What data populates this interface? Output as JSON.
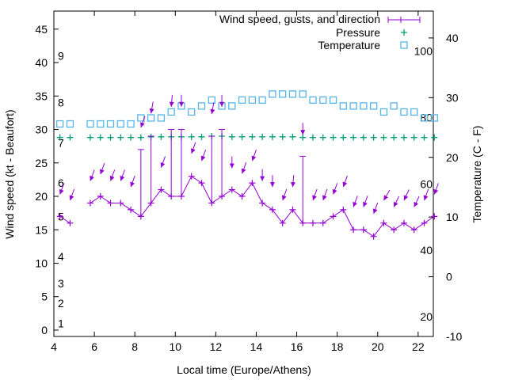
{
  "chart_data": {
    "type": "line",
    "xlabel": "Local time (Europe/Athens)",
    "ylabel": "Wind speed (kt - Beaufort)",
    "y2label": "Temperature (C - F)",
    "xlim": [
      4,
      22.75
    ],
    "ylim": [
      -0.95,
      47.7
    ],
    "y2lim": [
      -10,
      44.5
    ],
    "xticks": [
      4,
      6,
      8,
      10,
      12,
      14,
      16,
      18,
      20,
      22
    ],
    "yticks": [
      0,
      5,
      10,
      15,
      20,
      25,
      30,
      35,
      40,
      45
    ],
    "y2ticks": [
      -10,
      0,
      10,
      20,
      30,
      40
    ],
    "beaufort_labels": [
      {
        "label": "1",
        "kt": 1
      },
      {
        "label": "2",
        "kt": 4
      },
      {
        "label": "3",
        "kt": 7
      },
      {
        "label": "4",
        "kt": 11
      },
      {
        "label": "5",
        "kt": 17
      },
      {
        "label": "6",
        "kt": 22
      },
      {
        "label": "7",
        "kt": 28
      },
      {
        "label": "8",
        "kt": 34
      },
      {
        "label": "9",
        "kt": 41
      }
    ],
    "fahrenheit_labels": [
      {
        "label": "20",
        "f": 20
      },
      {
        "label": "40",
        "f": 40
      },
      {
        "label": "60",
        "f": 60
      },
      {
        "label": "80",
        "f": 80
      },
      {
        "label": "100",
        "f": 100
      }
    ],
    "legend": {
      "position": "top-right",
      "entries": [
        "Wind speed, gusts, and direction",
        "Pressure",
        "Temperature"
      ]
    },
    "colors": {
      "wind": "#9400d3",
      "pressure": "#009e73",
      "temperature": "#56b4e9"
    },
    "x": [
      4.3,
      4.8,
      5.8,
      6.3,
      6.8,
      7.3,
      7.8,
      8.3,
      8.8,
      9.3,
      9.8,
      10.3,
      10.8,
      11.3,
      11.8,
      12.3,
      12.8,
      13.3,
      13.8,
      14.3,
      14.8,
      15.3,
      15.8,
      16.3,
      16.8,
      17.3,
      17.8,
      18.3,
      18.8,
      19.3,
      19.8,
      20.3,
      20.8,
      21.3,
      21.8,
      22.3,
      22.8
    ],
    "series": [
      {
        "name": "Wind speed",
        "values": [
          17,
          16,
          19,
          20,
          19,
          19,
          18,
          17,
          19,
          21,
          20,
          20,
          23,
          22,
          19,
          20,
          21,
          20,
          22,
          19,
          18,
          16,
          18,
          16,
          16,
          16,
          17,
          18,
          15,
          15,
          14,
          16,
          15,
          16,
          15,
          16,
          17
        ]
      },
      {
        "name": "Gusts",
        "values": [
          null,
          null,
          null,
          null,
          null,
          null,
          null,
          27,
          29,
          null,
          30,
          30,
          null,
          null,
          29,
          30,
          null,
          null,
          null,
          null,
          null,
          null,
          null,
          26,
          null,
          null,
          null,
          null,
          null,
          null,
          null,
          null,
          null,
          null,
          null,
          null,
          null
        ]
      },
      {
        "name": "Direction arrow level (kt axis)",
        "values": [
          20.3,
          19.4,
          22.3,
          23.3,
          22.3,
          22.3,
          21.4,
          30.3,
          32.4,
          24.3,
          33.4,
          33.4,
          26.4,
          25.3,
          32.3,
          33.4,
          24.2,
          23.4,
          25.3,
          22.3,
          21.4,
          19.4,
          21.4,
          29.2,
          19.4,
          19.4,
          20.3,
          21.4,
          18.4,
          18.4,
          17.4,
          19.4,
          18.4,
          19.4,
          18.4,
          19.4,
          20.3
        ]
      },
      {
        "name": "Wind direction (deg from)",
        "values": [
          20,
          20,
          20,
          20,
          20,
          20,
          20,
          20,
          10,
          20,
          5,
          0,
          20,
          20,
          10,
          0,
          0,
          20,
          20,
          0,
          0,
          20,
          5,
          0,
          20,
          20,
          20,
          20,
          20,
          20,
          20,
          30,
          25,
          25,
          25,
          20,
          20
        ]
      },
      {
        "name": "Pressure (plotted on kt axis)",
        "values": [
          28.8,
          28.8,
          28.8,
          28.8,
          28.8,
          28.8,
          28.8,
          28.8,
          28.9,
          28.9,
          28.9,
          28.9,
          28.9,
          28.9,
          29.0,
          29.0,
          28.9,
          28.9,
          28.9,
          28.9,
          28.9,
          28.9,
          28.9,
          28.8,
          28.8,
          28.8,
          28.8,
          28.8,
          28.8,
          28.8,
          28.8,
          28.8,
          28.8,
          28.8,
          28.8,
          28.8,
          28.8
        ]
      },
      {
        "name": "Temperature (C)",
        "values": [
          25.6,
          25.6,
          25.6,
          25.6,
          25.6,
          25.6,
          25.6,
          26.6,
          26.6,
          26.6,
          27.6,
          28.6,
          27.6,
          28.6,
          29.6,
          28.6,
          28.6,
          29.6,
          29.6,
          29.6,
          30.6,
          30.6,
          30.6,
          30.6,
          29.6,
          29.6,
          29.6,
          28.6,
          28.6,
          28.6,
          28.6,
          27.6,
          28.6,
          27.6,
          27.6,
          26.6,
          26.6
        ]
      }
    ]
  }
}
